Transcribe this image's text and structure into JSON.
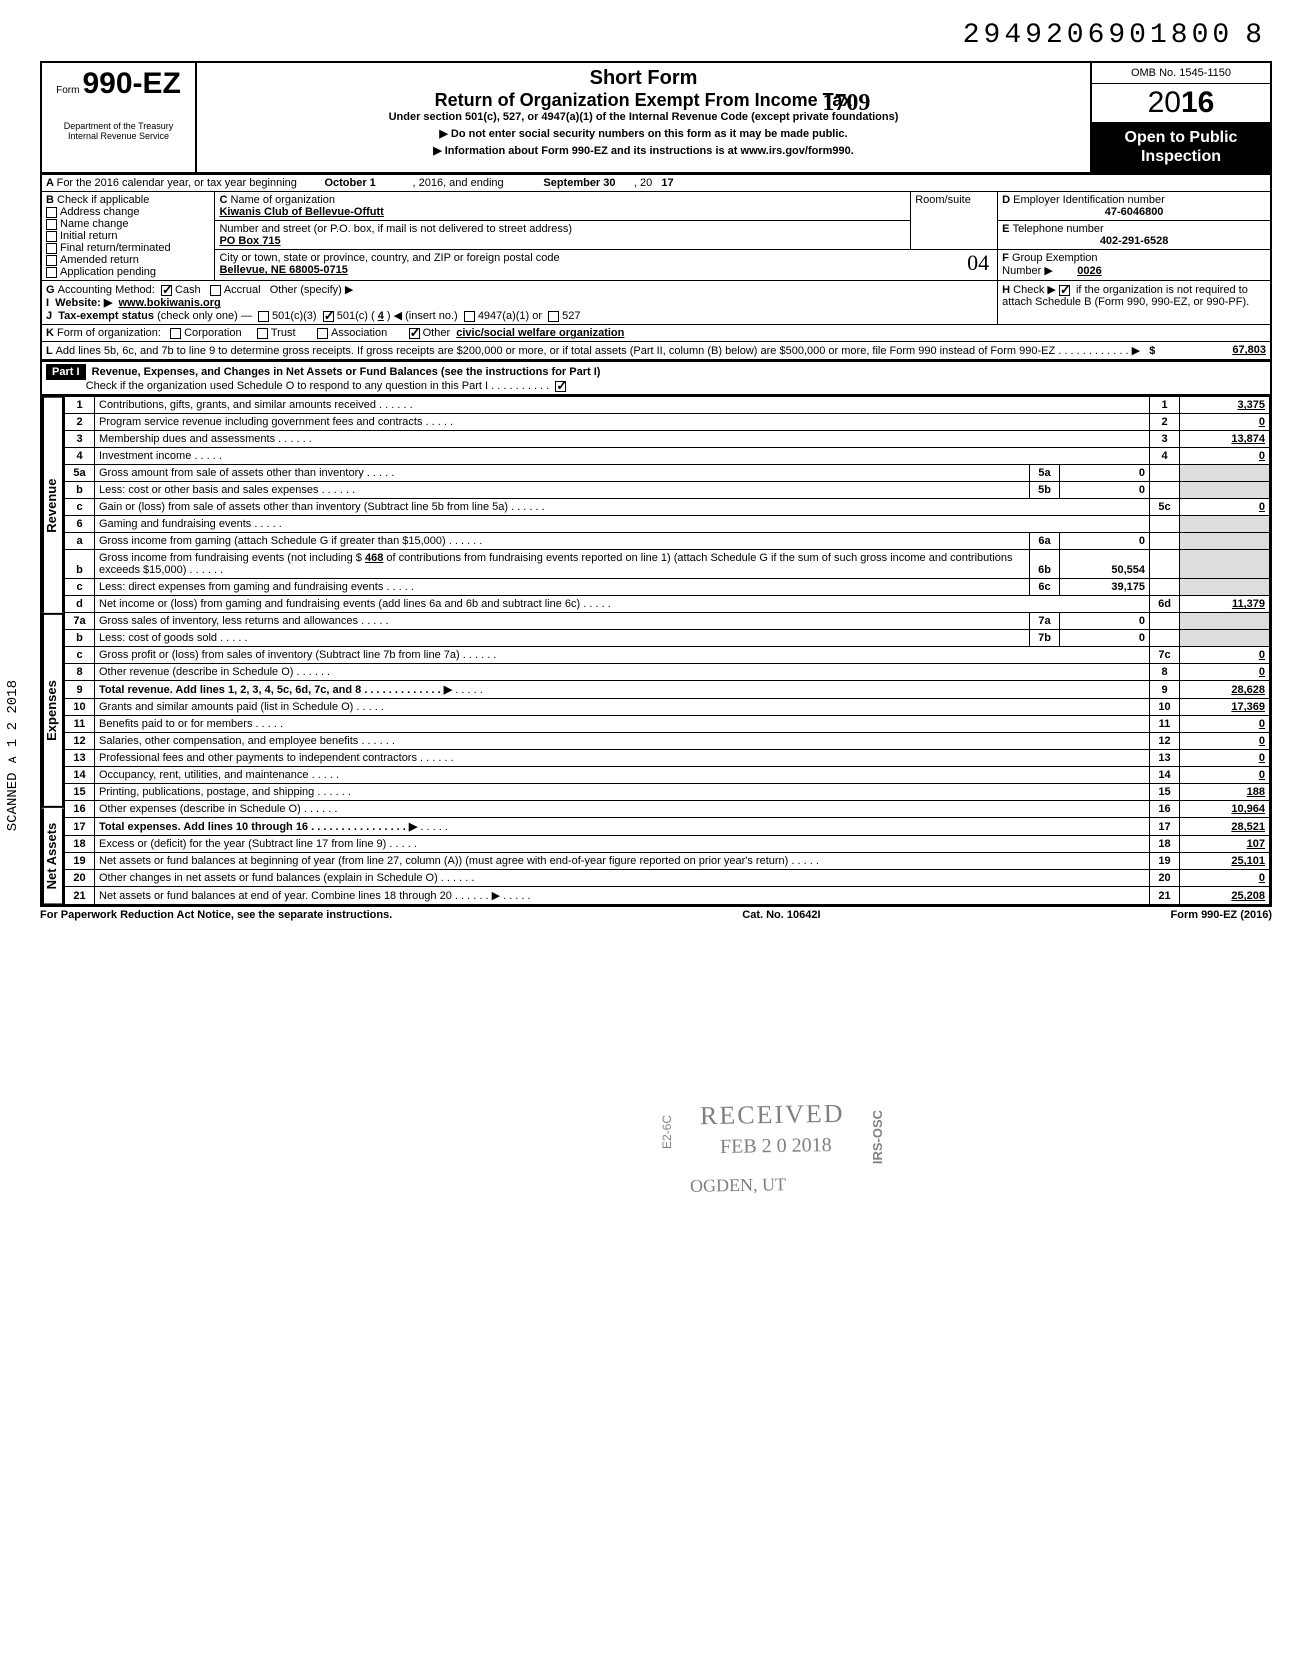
{
  "doc_number": "29492069018008",
  "doc_number_main": "2949206901800",
  "doc_number_trail": "8",
  "header": {
    "form_prefix": "Form",
    "form_no": "990-EZ",
    "dept1": "Department of the Treasury",
    "dept2": "Internal Revenue Service",
    "title1": "Short Form",
    "title2": "Return of Organization Exempt From Income Tax",
    "handwritten": "1709",
    "subtitle": "Under section 501(c), 527, or 4947(a)(1) of the Internal Revenue Code (except private foundations)",
    "warn": "▶ Do not enter social security numbers on this form as it may be made public.",
    "info": "▶ Information about Form 990-EZ and its instructions is at www.irs.gov/form990.",
    "omb": "OMB No. 1545-1150",
    "year_prefix": "20",
    "year_bold": "16",
    "open1": "Open to Public",
    "open2": "Inspection"
  },
  "blockA": {
    "a_text": "For the 2016 calendar year, or tax year beginning",
    "a_start": "October 1",
    "a_mid": ", 2016, and ending",
    "a_end": "September 30",
    "a_yr_prefix": ", 20",
    "a_yr": "17",
    "b_label": "Check if applicable",
    "b_items": [
      "Address change",
      "Name change",
      "Initial return",
      "Final return/terminated",
      "Amended return",
      "Application pending"
    ],
    "c_label": "Name of organization",
    "c_value": "Kiwanis Club of Bellevue-Offutt",
    "c_addr_label": "Number and street (or P.O. box, if mail is not delivered to street address)",
    "c_addr": "PO Box 715",
    "c_room_label": "Room/suite",
    "c_city_label": "City or town, state or province, country, and ZIP or foreign postal code",
    "c_city": "Bellevue, NE  68005-0715",
    "c_city_hand": "04",
    "d_label": "Employer Identification number",
    "d_value": "47-6046800",
    "e_label": "Telephone number",
    "e_value": "402-291-6528",
    "f_label": "Group Exemption",
    "f_label2": "Number ▶",
    "f_value": "0026",
    "g_label": "Accounting Method:",
    "g_cash": "Cash",
    "g_accrual": "Accrual",
    "g_other": "Other (specify) ▶",
    "h_text": "Check ▶",
    "h_text2": "if the organization is not required to attach Schedule B (Form 990, 990-EZ, or 990-PF).",
    "i_label": "Website: ▶",
    "i_value": "www.bokiwanis.org",
    "j_label": "Tax-exempt status (check only one) —",
    "j_501c3": "501(c)(3)",
    "j_501c": "501(c) (",
    "j_501c_num": "4",
    "j_501c_tail": ") ◀ (insert no.)",
    "j_4947": "4947(a)(1) or",
    "j_527": "527",
    "k_label": "Form of organization:",
    "k_corp": "Corporation",
    "k_trust": "Trust",
    "k_assoc": "Association",
    "k_other": "Other",
    "k_other_val": "civic/social welfare organization",
    "l_text": "Add lines 5b, 6c, and 7b to line 9 to determine gross receipts. If gross receipts are $200,000 or more, or if total assets (Part II, column (B) below) are $500,000 or more, file Form 990 instead of Form 990-EZ .  .  .  .  .  .  .  .  .  .  .  .  ▶",
    "l_amount": "67,803"
  },
  "part1": {
    "title": "Part I",
    "heading": "Revenue, Expenses, and Changes in Net Assets or Fund Balances (see the instructions for Part I)",
    "check_text": "Check if the organization used Schedule O to respond to any question in this Part I .  .  .  .  .  .  .  .  .  .",
    "sections": {
      "revenue": "Revenue",
      "expenses": "Expenses",
      "netassets": "Net Assets"
    }
  },
  "lines": [
    {
      "n": "1",
      "desc": "Contributions, gifts, grants, and similar amounts received .",
      "box": "1",
      "amt": "3,375"
    },
    {
      "n": "2",
      "desc": "Program service revenue including government fees and contracts",
      "box": "2",
      "amt": "0"
    },
    {
      "n": "3",
      "desc": "Membership dues and assessments .",
      "box": "3",
      "amt": "13,874"
    },
    {
      "n": "4",
      "desc": "Investment income",
      "box": "4",
      "amt": "0"
    },
    {
      "n": "5a",
      "desc": "Gross amount from sale of assets other than inventory",
      "subbox": "5a",
      "subamt": "0"
    },
    {
      "n": "b",
      "desc": "Less: cost or other basis and sales expenses .",
      "subbox": "5b",
      "subamt": "0"
    },
    {
      "n": "c",
      "desc": "Gain or (loss) from sale of assets other than inventory (Subtract line 5b from line 5a) .",
      "box": "5c",
      "amt": "0"
    },
    {
      "n": "6",
      "desc": "Gaming and fundraising events"
    },
    {
      "n": "a",
      "desc": "Gross income from gaming (attach Schedule G if greater than $15,000) .",
      "subbox": "6a",
      "subamt": "0"
    },
    {
      "n": "b",
      "desc": "Gross income from fundraising events (not including  $",
      "insert": "468",
      "desc2": "of contributions from fundraising events reported on line 1) (attach Schedule G if the sum of such gross income and contributions exceeds $15,000) .",
      "subbox": "6b",
      "subamt": "50,554"
    },
    {
      "n": "c",
      "desc": "Less: direct expenses from gaming and fundraising events",
      "subbox": "6c",
      "subamt": "39,175"
    },
    {
      "n": "d",
      "desc": "Net income or (loss) from gaming and fundraising events (add lines 6a and 6b and subtract line 6c)",
      "box": "6d",
      "amt": "11,379"
    },
    {
      "n": "7a",
      "desc": "Gross sales of inventory, less returns and allowances",
      "subbox": "7a",
      "subamt": "0"
    },
    {
      "n": "b",
      "desc": "Less: cost of goods sold",
      "subbox": "7b",
      "subamt": "0"
    },
    {
      "n": "c",
      "desc": "Gross profit or (loss) from sales of inventory (Subtract line 7b from line 7a) .",
      "box": "7c",
      "amt": "0"
    },
    {
      "n": "8",
      "desc": "Other revenue (describe in Schedule O) .",
      "box": "8",
      "amt": "0"
    },
    {
      "n": "9",
      "desc": "Total revenue. Add lines 1, 2, 3, 4, 5c, 6d, 7c, and 8  .  .  .  .  .  .  .  .  .  .  .  .  .  ▶",
      "box": "9",
      "amt": "28,628",
      "bold": true
    },
    {
      "n": "10",
      "desc": "Grants and similar amounts paid (list in Schedule O)",
      "box": "10",
      "amt": "17,369"
    },
    {
      "n": "11",
      "desc": "Benefits paid to or for members",
      "box": "11",
      "amt": "0"
    },
    {
      "n": "12",
      "desc": "Salaries, other compensation, and employee benefits .",
      "box": "12",
      "amt": "0"
    },
    {
      "n": "13",
      "desc": "Professional fees and other payments to independent contractors .",
      "box": "13",
      "amt": "0"
    },
    {
      "n": "14",
      "desc": "Occupancy, rent, utilities, and maintenance",
      "box": "14",
      "amt": "0"
    },
    {
      "n": "15",
      "desc": "Printing, publications, postage, and shipping .",
      "box": "15",
      "amt": "188"
    },
    {
      "n": "16",
      "desc": "Other expenses (describe in Schedule O) .",
      "box": "16",
      "amt": "10,964"
    },
    {
      "n": "17",
      "desc": "Total expenses. Add lines 10 through 16  .  .  .  .  .  .  .  .  .  .  .  .  .  .  .  .  ▶",
      "box": "17",
      "amt": "28,521",
      "bold": true
    },
    {
      "n": "18",
      "desc": "Excess or (deficit) for the year (Subtract line 17 from line 9)",
      "box": "18",
      "amt": "107"
    },
    {
      "n": "19",
      "desc": "Net assets or fund balances at beginning of year (from line 27, column (A)) (must agree with end-of-year figure reported on prior year's return)",
      "box": "19",
      "amt": "25,101"
    },
    {
      "n": "20",
      "desc": "Other changes in net assets or fund balances (explain in Schedule O) .",
      "box": "20",
      "amt": "0"
    },
    {
      "n": "21",
      "desc": "Net assets or fund balances at end of year. Combine lines 18 through 20  .  .  .  .  .  .  ▶",
      "box": "21",
      "amt": "25,208"
    }
  ],
  "footer": {
    "left": "For Paperwork Reduction Act Notice, see the separate instructions.",
    "mid": "Cat. No. 10642I",
    "right": "Form 990-EZ (2016)"
  },
  "stamps": {
    "received": "RECEIVED",
    "date": "FEB 2 0 2018",
    "ogden": "OGDEN, UT",
    "e2": "E2-6C",
    "irs": "IRS-OSC",
    "side": "SCANNED  ᴀ 1 2 2018"
  },
  "colors": {
    "black": "#000000",
    "white": "#ffffff",
    "grey": "#dddddd"
  }
}
